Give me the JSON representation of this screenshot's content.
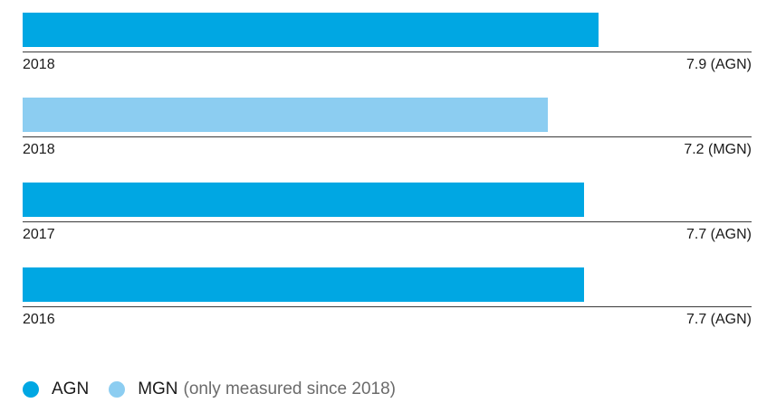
{
  "colors": {
    "agn": "#00a7e3",
    "mgn": "#8ccdf1"
  },
  "chart_data": {
    "type": "bar",
    "orientation": "horizontal",
    "categories": [
      "2018",
      "2018",
      "2017",
      "2016"
    ],
    "values": [
      7.9,
      7.2,
      7.7,
      7.7
    ],
    "series_of_bar": [
      "AGN",
      "MGN",
      "AGN",
      "AGN"
    ],
    "value_labels": [
      "7.9 (AGN)",
      "7.2 (MGN)",
      "7.7 (AGN)",
      "7.7 (AGN)"
    ],
    "series": [
      {
        "name": "AGN",
        "color": "#00a7e3"
      },
      {
        "name": "MGN",
        "color": "#8ccdf1"
      }
    ],
    "xlim": [
      0,
      10
    ],
    "grid": false,
    "legend": {
      "placement": "bottom-left",
      "items": [
        {
          "name": "AGN",
          "note": "",
          "color": "#00a7e3"
        },
        {
          "name": "MGN",
          "note": "(only measured since 2018)",
          "color": "#8ccdf1"
        }
      ]
    }
  }
}
